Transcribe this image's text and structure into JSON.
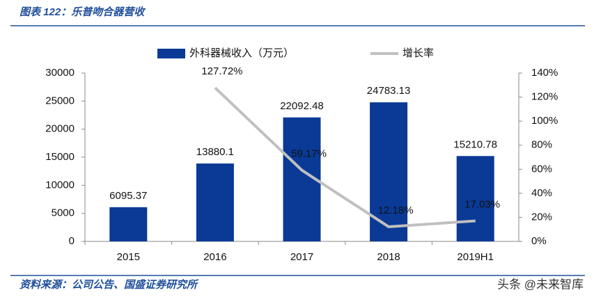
{
  "header": {
    "title": "图表 122：乐普吻合器营收"
  },
  "chart_data": {
    "type": "bar",
    "categories": [
      "2015",
      "2016",
      "2017",
      "2018",
      "2019H1"
    ],
    "series": [
      {
        "name": "外科器械收入（万元）",
        "color": "#0a3a96",
        "values": [
          6095.37,
          13880.1,
          22092.48,
          24783.13,
          15210.78
        ]
      },
      {
        "name": "增长率",
        "color": "#c0c0c0",
        "axis": "y2",
        "type": "line",
        "values": [
          null,
          127.72,
          59.17,
          12.18,
          17.03
        ],
        "value_labels": [
          null,
          "127.72%",
          "59.17%",
          "12.18%",
          "17.03%"
        ]
      }
    ],
    "ylim": [
      0,
      30000
    ],
    "yticks": [
      0,
      5000,
      10000,
      15000,
      20000,
      25000,
      30000
    ],
    "y2lim": [
      0,
      140
    ],
    "y2ticks": [
      {
        "value": 0,
        "label": "0%"
      },
      {
        "value": 20,
        "label": "20%"
      },
      {
        "value": 40,
        "label": "40%"
      },
      {
        "value": 60,
        "label": "60%"
      },
      {
        "value": 80,
        "label": "80%"
      },
      {
        "value": 100,
        "label": "100%"
      },
      {
        "value": 120,
        "label": "120%"
      },
      {
        "value": 140,
        "label": "140%"
      }
    ],
    "legend": "top"
  },
  "footer": {
    "source": "资料来源：公司公告、国盛证券研究所",
    "watermark": "头条 @未来智库"
  }
}
